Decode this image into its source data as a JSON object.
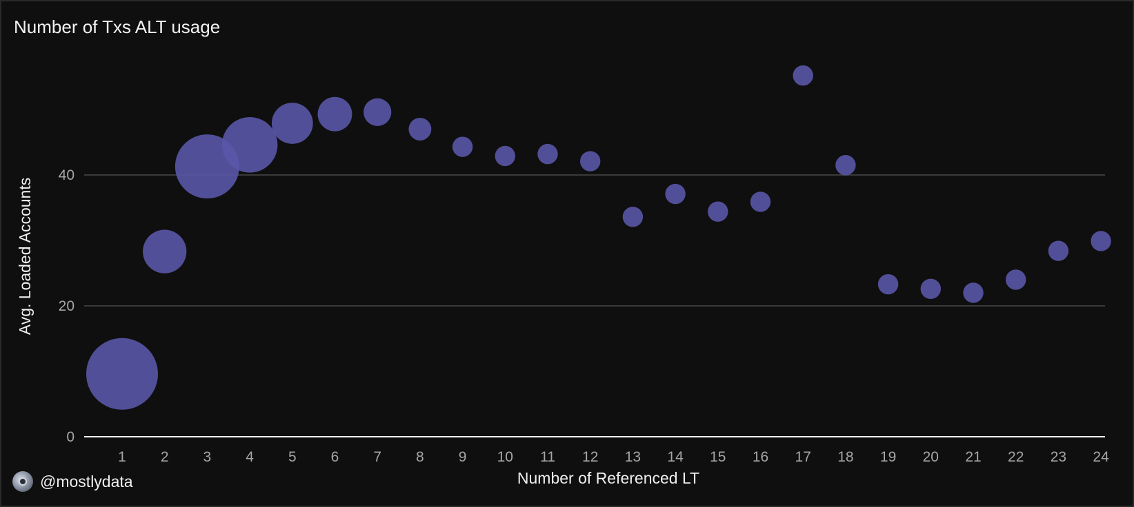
{
  "header": {
    "title": "Number of Txs ALT usage"
  },
  "footer": {
    "handle": "@mostlydata",
    "avatar_icon": "avatar-icon"
  },
  "colors": {
    "background": "#0f0f0f",
    "bubble": "#5a56a8",
    "grid": "#3a3a3a",
    "axis": "#ffffff"
  },
  "chart_data": {
    "type": "scatter",
    "title": "Number of Txs ALT usage",
    "xlabel": "Number of Referenced LT",
    "ylabel": "Avg. Loaded Accounts",
    "ylim": [
      0,
      60
    ],
    "yticks": [
      0,
      20,
      40
    ],
    "grid": true,
    "legend": "none",
    "categories": [
      "1",
      "2",
      "3",
      "4",
      "5",
      "6",
      "7",
      "8",
      "9",
      "10",
      "11",
      "12",
      "13",
      "14",
      "15",
      "16",
      "17",
      "18",
      "19",
      "20",
      "21",
      "22",
      "23",
      "24"
    ],
    "points": [
      {
        "x": 1,
        "y": 9.6,
        "size": 100
      },
      {
        "x": 2,
        "y": 28.3,
        "size": 37
      },
      {
        "x": 3,
        "y": 41.3,
        "size": 80
      },
      {
        "x": 4,
        "y": 44.6,
        "size": 60
      },
      {
        "x": 5,
        "y": 47.9,
        "size": 33
      },
      {
        "x": 6,
        "y": 49.3,
        "size": 23
      },
      {
        "x": 7,
        "y": 49.6,
        "size": 15
      },
      {
        "x": 8,
        "y": 47.0,
        "size": 10
      },
      {
        "x": 9,
        "y": 44.3,
        "size": 8
      },
      {
        "x": 10,
        "y": 42.9,
        "size": 8
      },
      {
        "x": 11,
        "y": 43.2,
        "size": 8
      },
      {
        "x": 12,
        "y": 42.1,
        "size": 8
      },
      {
        "x": 13,
        "y": 33.6,
        "size": 8
      },
      {
        "x": 14,
        "y": 37.1,
        "size": 8
      },
      {
        "x": 15,
        "y": 34.4,
        "size": 8
      },
      {
        "x": 16,
        "y": 35.9,
        "size": 8
      },
      {
        "x": 17,
        "y": 55.2,
        "size": 8
      },
      {
        "x": 18,
        "y": 41.5,
        "size": 8
      },
      {
        "x": 19,
        "y": 23.3,
        "size": 8
      },
      {
        "x": 20,
        "y": 22.6,
        "size": 8
      },
      {
        "x": 21,
        "y": 22.0,
        "size": 8
      },
      {
        "x": 22,
        "y": 24.0,
        "size": 8
      },
      {
        "x": 23,
        "y": 28.4,
        "size": 8
      },
      {
        "x": 24,
        "y": 29.9,
        "size": 8
      }
    ]
  }
}
